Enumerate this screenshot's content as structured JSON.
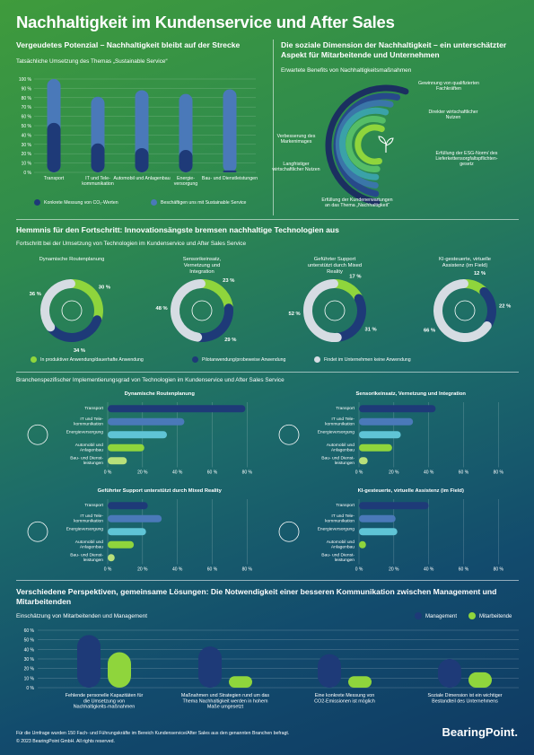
{
  "title": "Nachhaltigkeit im Kundenservice und After Sales",
  "colors": {
    "dark_blue": "#1e3a78",
    "mid_blue": "#4a79b9",
    "light_blue": "#5fc4d6",
    "green": "#8fd53c",
    "light_gray": "#d6dce3"
  },
  "s1": {
    "heading": "Vergeudetes Potenzial – Nachhaltigkeit bleibt auf der Strecke",
    "subtitle": "Tatsächliche Umsetzung des Themas „Sustainable Service“",
    "legend": [
      "Konkrete Messung von CO₂-Werten",
      "Beschäftigen uns mit Sustainable Service"
    ],
    "y_ticks": [
      "100 %",
      "90 %",
      "80 %",
      "70 %",
      "60 %",
      "50 %",
      "40 %",
      "30 %",
      "20 %",
      "10 %",
      "0 %"
    ]
  },
  "s2": {
    "heading": "Die soziale Dimension der Nachhaltigkeit – ein unterschätzter Aspekt für Mitarbeitende und Unternehmen",
    "subtitle": "Erwartete Benefits von Nachhaltigkeitsmaßnahmen",
    "labels": {
      "l1": "Gewinnung von qualifizierten Fachkräften",
      "l2": "Direkter wirtschaftlicher Nutzen",
      "l3": "Erfüllung der ESG-Norm/ des Lieferkettensorgfaltspflichten-gesetz",
      "l4": "Erfüllung der Kundenerwartungen an das Thema „Nachhaltigkeit“",
      "l5": "Langfristiger wirtschaftlicher Nutzen",
      "l6": "Verbesserung des Markenimages"
    }
  },
  "s3": {
    "heading": "Hemmnis für den Fortschritt: Innovationsängste bremsen nachhaltige Technologien aus",
    "subtitle": "Fortschritt bei der Umsetzung von Technologien im Kundenservice und After Sales Service",
    "legend": [
      "In produktiver Anwendung/dauerhafte Anwendung",
      "Pilotanwendung/probeweise Anwendung",
      "Findet im Unternehmen keine Anwendung"
    ]
  },
  "s4": {
    "subtitle": "Branchenspezifischer Implementierungsgrad von Technologien im Kundenservice und After Sales Service",
    "x_ticks": [
      "0 %",
      "20 %",
      "40 %",
      "60 %",
      "80 %"
    ]
  },
  "s5": {
    "heading": "Verschiedene Perspektiven, gemeinsame Lösungen: Die Notwendigkeit einer besseren Kommunikation zwischen Management und Mitarbeitenden",
    "subtitle": "Einschätzung von Mitarbeitenden und Management",
    "y_ticks": [
      "60 %",
      "50 %",
      "40 %",
      "30 %",
      "20 %",
      "10 %",
      "0 %"
    ]
  },
  "footer": {
    "note": "Für die Umfrage wurden 150 Fach- und Führungskräfte im Bereich Kundenservice/After Sales aus den genannten Branchen befragt.",
    "copyright": "© 2023 BearingPoint GmbH. All rights reserved.",
    "logo": "BearingPoint."
  },
  "chart_data": [
    {
      "type": "bar",
      "title": "Tatsächliche Umsetzung des Themas „Sustainable Service“",
      "categories": [
        "Transport",
        "IT und Tele-kommunikation",
        "Automobil und Anlagenbau",
        "Energie-versorgung",
        "Bau- und Dienstleistungen"
      ],
      "series": [
        {
          "name": "Konkrete Messung von CO₂-Werten",
          "values": [
            53,
            31,
            26,
            24,
            2
          ]
        },
        {
          "name": "Beschäftigen uns mit Sustainable Service",
          "values": [
            100,
            81,
            88,
            84,
            89
          ]
        }
      ],
      "ylim": [
        0,
        100
      ]
    },
    {
      "type": "pie",
      "title": "Dynamische Routenplanung",
      "labels": [
        "In produktiver Anwendung/dauerhafte Anwendung",
        "Pilotanwendung/probeweise Anwendung",
        "Findet im Unternehmen keine Anwendung"
      ],
      "values": [
        30,
        34,
        36
      ],
      "value_labels": [
        "30 %",
        "34 %",
        "36 %"
      ]
    },
    {
      "type": "pie",
      "title": "Sensorikeinsatz, Vernetzung und Integration",
      "labels": [
        "In produktiver Anwendung/dauerhafte Anwendung",
        "Pilotanwendung/probeweise Anwendung",
        "Findet im Unternehmen keine Anwendung"
      ],
      "values": [
        23,
        29,
        48
      ],
      "value_labels": [
        "23 %",
        "29 %",
        "48 %"
      ]
    },
    {
      "type": "pie",
      "title": "Geführter Support unterstützt durch Mixed Reality",
      "labels": [
        "In produktiver Anwendung/dauerhafte Anwendung",
        "Pilotanwendung/probeweise Anwendung",
        "Findet im Unternehmen keine Anwendung"
      ],
      "values": [
        17,
        31,
        52
      ],
      "value_labels": [
        "17 %",
        "31 %",
        "52 %"
      ]
    },
    {
      "type": "pie",
      "title": "KI-gesteuerte, virtuelle Assistenz (im Field)",
      "labels": [
        "In produktiver Anwendung/dauerhafte Anwendung",
        "Pilotanwendung/probeweise Anwendung",
        "Findet im Unternehmen keine Anwendung"
      ],
      "values": [
        12,
        22,
        66
      ],
      "value_labels": [
        "12 %",
        "22 %",
        "66 %"
      ]
    },
    {
      "type": "bar",
      "orientation": "horizontal",
      "title": "Dynamische Routenplanung",
      "categories": [
        "Transport",
        "IT und Tele-kommunikation",
        "Energieversorgung",
        "Automobil und Anlagenbau",
        "Bau- und Dienst-leistungen"
      ],
      "values": [
        79,
        44,
        34,
        21,
        11
      ],
      "colors": [
        "#1e3a78",
        "#4a79b9",
        "#5fc4d6",
        "#8fd53c",
        "#b8e07a"
      ],
      "xlim": [
        0,
        85
      ]
    },
    {
      "type": "bar",
      "orientation": "horizontal",
      "title": "Sensorikeinsatz, Vernetzung und Integration",
      "categories": [
        "Transport",
        "IT und Tele-kommunikation",
        "Energieversorgung",
        "Automobil und Anlagenbau",
        "Bau- und Dienst-leistungen"
      ],
      "values": [
        44,
        31,
        24,
        19,
        5
      ],
      "colors": [
        "#1e3a78",
        "#4a79b9",
        "#5fc4d6",
        "#8fd53c",
        "#b8e07a"
      ],
      "xlim": [
        0,
        85
      ]
    },
    {
      "type": "bar",
      "orientation": "horizontal",
      "title": "Geführter Support unterstützt durch Mixed Reality",
      "categories": [
        "Transport",
        "IT und Tele-kommunikation",
        "Energieversorgung",
        "Automobil und Anlagenbau",
        "Bau- und Dienst-leistungen"
      ],
      "values": [
        23,
        31,
        22,
        15,
        4
      ],
      "colors": [
        "#1e3a78",
        "#4a79b9",
        "#5fc4d6",
        "#8fd53c",
        "#b8e07a"
      ],
      "xlim": [
        0,
        85
      ]
    },
    {
      "type": "bar",
      "orientation": "horizontal",
      "title": "KI-gesteuerte, virtuelle Assistenz (im Field)",
      "categories": [
        "Transport",
        "IT und Tele-kommunikation",
        "Energieversorgung",
        "Automobil und Anlagenbau",
        "Bau- und Dienst-leistungen"
      ],
      "values": [
        40,
        21,
        22,
        4,
        0
      ],
      "colors": [
        "#1e3a78",
        "#4a79b9",
        "#5fc4d6",
        "#8fd53c",
        "#b8e07a"
      ],
      "xlim": [
        0,
        85
      ]
    },
    {
      "type": "bar",
      "title": "Einschätzung von Mitarbeitenden und Management",
      "categories": [
        "Fehlende personelle Kapazitäten für die Umsetzung von Nachhaltigkeits-maßnahmen",
        "Maßnahmen und Strategien rund um das Thema Nachhaltigkeit werden in hohem Maße umgesetzt",
        "Eine konkrete Messung von CO2-Emissionen ist möglich",
        "Soziale Dimension ist ein wichtiger Bestandteil des Unternehmens"
      ],
      "series": [
        {
          "name": "Management",
          "values": [
            55,
            43,
            35,
            30
          ]
        },
        {
          "name": "Mitarbeitende",
          "values": [
            37,
            12,
            12,
            16
          ]
        }
      ],
      "ylim": [
        0,
        60
      ]
    }
  ]
}
